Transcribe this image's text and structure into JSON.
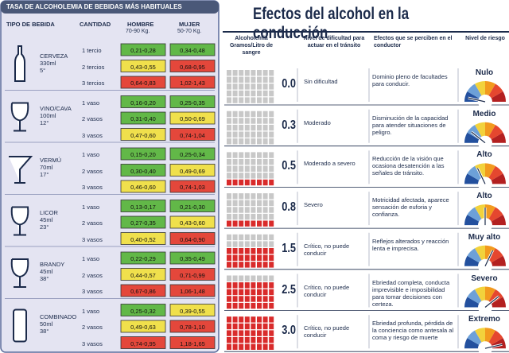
{
  "left": {
    "title": "TASA DE ALCOHOLEMIA DE BEBIDAS MÁS HABITUALES",
    "headers": [
      "TIPO DE BEBIDA",
      "CANTIDAD",
      "HOMBRE",
      "MUJER"
    ],
    "subheaders": {
      "hombre": "70-90 Kg.",
      "mujer": "50-70 Kg."
    },
    "drinks": [
      {
        "name": "CERVEZA",
        "volume": "330ml",
        "degrees": "5°",
        "rows": [
          {
            "amount": "1 tercio",
            "hombre": {
              "text": "0,21-0,28",
              "color": "#62b848"
            },
            "mujer": {
              "text": "0,34-0,48",
              "color": "#62b848"
            }
          },
          {
            "amount": "2 tercios",
            "hombre": {
              "text": "0,43-0,55",
              "color": "#f0e04c"
            },
            "mujer": {
              "text": "0,68-0,95",
              "color": "#e4473b"
            }
          },
          {
            "amount": "3 tercios",
            "hombre": {
              "text": "0,64-0,83",
              "color": "#e4473b"
            },
            "mujer": {
              "text": "1,02-1,43",
              "color": "#e4473b"
            }
          }
        ]
      },
      {
        "name": "VINO/CAVA",
        "volume": "100ml",
        "degrees": "12°",
        "rows": [
          {
            "amount": "1 vaso",
            "hombre": {
              "text": "0,16-0,20",
              "color": "#62b848"
            },
            "mujer": {
              "text": "0,25-0,35",
              "color": "#62b848"
            }
          },
          {
            "amount": "2 vasos",
            "hombre": {
              "text": "0,31-0,40",
              "color": "#62b848"
            },
            "mujer": {
              "text": "0,50-0,69",
              "color": "#f0e04c"
            }
          },
          {
            "amount": "3 vasos",
            "hombre": {
              "text": "0,47-0,60",
              "color": "#f0e04c"
            },
            "mujer": {
              "text": "0,74-1,04",
              "color": "#e4473b"
            }
          }
        ]
      },
      {
        "name": "VERMÚ",
        "volume": "70ml",
        "degrees": "17°",
        "rows": [
          {
            "amount": "1 vaso",
            "hombre": {
              "text": "0,15-0,20",
              "color": "#62b848"
            },
            "mujer": {
              "text": "0,25-0,34",
              "color": "#62b848"
            }
          },
          {
            "amount": "2 vasos",
            "hombre": {
              "text": "0,30-0,40",
              "color": "#62b848"
            },
            "mujer": {
              "text": "0,49-0,69",
              "color": "#f0e04c"
            }
          },
          {
            "amount": "3 vasos",
            "hombre": {
              "text": "0,46-0,60",
              "color": "#f0e04c"
            },
            "mujer": {
              "text": "0,74-1,03",
              "color": "#e4473b"
            }
          }
        ]
      },
      {
        "name": "LICOR",
        "volume": "45ml",
        "degrees": "23°",
        "rows": [
          {
            "amount": "1 vaso",
            "hombre": {
              "text": "0,13-0,17",
              "color": "#62b848"
            },
            "mujer": {
              "text": "0,21-0,30",
              "color": "#62b848"
            }
          },
          {
            "amount": "2 vasos",
            "hombre": {
              "text": "0,27-0,35",
              "color": "#62b848"
            },
            "mujer": {
              "text": "0,43-0,60",
              "color": "#f0e04c"
            }
          },
          {
            "amount": "3 vasos",
            "hombre": {
              "text": "0,40-0,52",
              "color": "#f0e04c"
            },
            "mujer": {
              "text": "0,64-0,90",
              "color": "#e4473b"
            }
          }
        ]
      },
      {
        "name": "BRANDY",
        "volume": "45ml",
        "degrees": "38°",
        "rows": [
          {
            "amount": "1 vaso",
            "hombre": {
              "text": "0,22-0,29",
              "color": "#62b848"
            },
            "mujer": {
              "text": "0,35-0,49",
              "color": "#62b848"
            }
          },
          {
            "amount": "2 vasos",
            "hombre": {
              "text": "0,44-0,57",
              "color": "#f0e04c"
            },
            "mujer": {
              "text": "0,71-0,99",
              "color": "#e4473b"
            }
          },
          {
            "amount": "3 vasos",
            "hombre": {
              "text": "0,67-0,86",
              "color": "#e4473b"
            },
            "mujer": {
              "text": "1,06-1,48",
              "color": "#e4473b"
            }
          }
        ]
      },
      {
        "name": "COMBINADO",
        "volume": "50ml",
        "degrees": "38°",
        "rows": [
          {
            "amount": "1 vaso",
            "hombre": {
              "text": "0,25-0,32",
              "color": "#62b848"
            },
            "mujer": {
              "text": "0,39-0,55",
              "color": "#f0e04c"
            }
          },
          {
            "amount": "2 vasos",
            "hombre": {
              "text": "0,49-0,63",
              "color": "#f0e04c"
            },
            "mujer": {
              "text": "0,78-1,10",
              "color": "#e4473b"
            }
          },
          {
            "amount": "3 vasos",
            "hombre": {
              "text": "0,74-0,95",
              "color": "#e4473b"
            },
            "mujer": {
              "text": "1,18-1,65",
              "color": "#e4473b"
            }
          }
        ]
      }
    ]
  },
  "right": {
    "title": "Efectos del alcohol en la conducción",
    "headers": [
      "Alcoholemia Gramos/Litro de sangre",
      "Nivel de dificultad para actuar en el tránsito",
      "Efectos que se perciben en el conductor",
      "Nivel de riesgo"
    ],
    "rows": [
      {
        "alcoholemia": {
          "value": 0,
          "label": "0.0"
        },
        "difficulty": "Sin dificultad",
        "effects": "Dominio pleno de facultades para conducir.",
        "risk": "Nulo"
      },
      {
        "alcoholemia": 0.3,
        "difficulty": "Moderado",
        "effects": "Disminución de la capacidad para atender situaciones de peligro.",
        "risk": "Medio"
      },
      {
        "alcoholemia": 0.5,
        "difficulty": "Moderado a severo",
        "effects": "Reducción de la visión que ocasiona desatención a las señales de tránsito.",
        "risk": "Alto"
      },
      {
        "alcoholemia": 0.8,
        "difficulty": "Severo",
        "effects": "Motricidad afectada, aparece sensación de euforia y confianza.",
        "risk": "Alto"
      },
      {
        "alcoholemia": 1.5,
        "difficulty": "Crítico, no puede conducir",
        "effects": "Reflejos alterados y reacción lenta e imprecisa.",
        "risk": "Muy alto"
      },
      {
        "alcoholemia": 2.5,
        "difficulty": "Crítico, no puede conducir",
        "effects": "Ebriedad completa, conducta imprevisible e imposibilidad para tomar decisiones con certeza.",
        "risk": "Severo"
      },
      {
        "alcoholemia": {
          "value": 3,
          "label": "3.0"
        },
        "difficulty": "Crítico, no puede conducir",
        "effects": "Ebriedad profunda, pérdida de la conciencia como antesala al coma y riesgo de muerte",
        "risk": "Extremo"
      }
    ]
  }
}
